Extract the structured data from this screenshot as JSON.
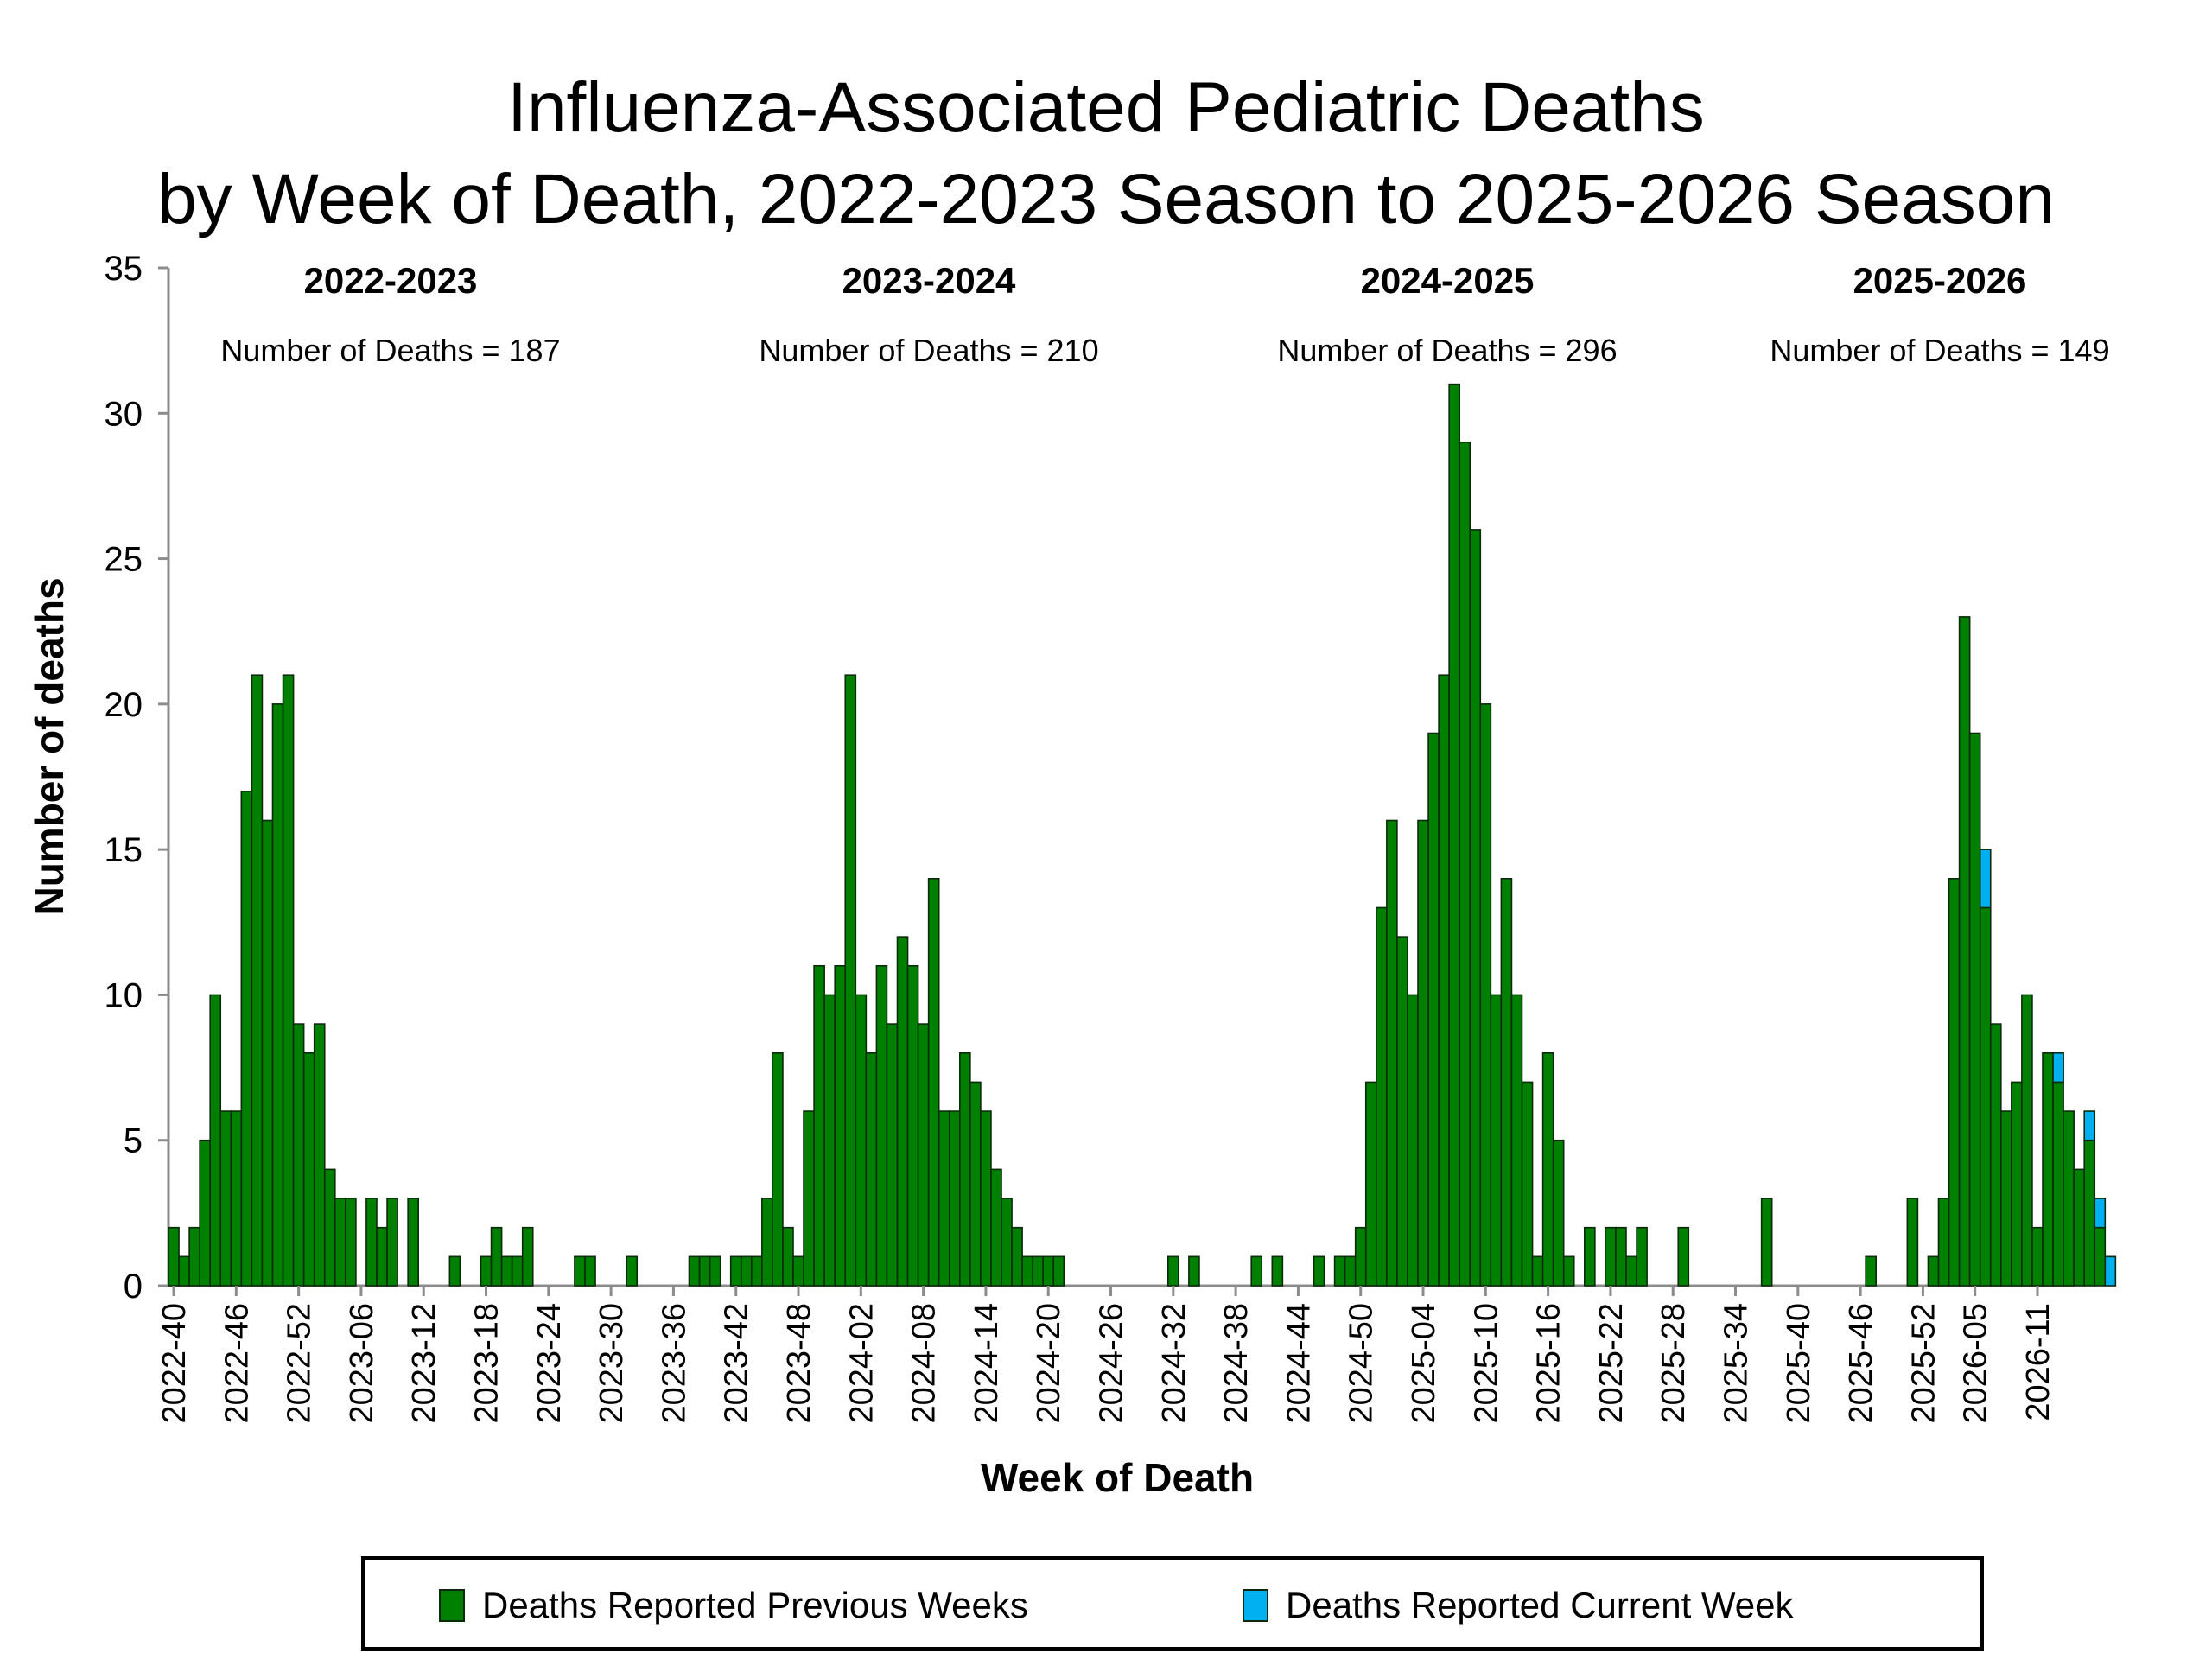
{
  "chart_data": {
    "type": "bar",
    "title": [
      "Influenza-Associated Pediatric Deaths",
      "by Week of Death, 2022-2023 Season to 2025-2026 Season"
    ],
    "xlabel": "Week of Death",
    "ylabel": "Number of deaths",
    "ylim": [
      0,
      35
    ],
    "yticks": [
      0,
      5,
      10,
      15,
      20,
      25,
      30,
      35
    ],
    "x_tick_labels": [
      "2022-40",
      "2022-46",
      "2022-52",
      "2023-06",
      "2023-12",
      "2023-18",
      "2023-24",
      "2023-30",
      "2023-36",
      "2023-42",
      "2023-48",
      "2024-02",
      "2024-08",
      "2024-14",
      "2024-20",
      "2024-26",
      "2024-32",
      "2024-38",
      "2024-44",
      "2024-50",
      "2025-04",
      "2025-10",
      "2025-16",
      "2025-22",
      "2025-28",
      "2025-34",
      "2025-40",
      "2025-46",
      "2025-52",
      "2026-05",
      "2026-11"
    ],
    "x_start_week": "2022-40",
    "series": [
      {
        "name": "Deaths Reported Previous Weeks",
        "color": "#008000",
        "values": [
          2,
          1,
          2,
          5,
          10,
          6,
          6,
          17,
          21,
          16,
          20,
          21,
          9,
          8,
          9,
          4,
          3,
          3,
          0,
          3,
          2,
          3,
          0,
          3,
          0,
          0,
          0,
          1,
          0,
          0,
          1,
          2,
          1,
          1,
          2,
          0,
          0,
          0,
          0,
          1,
          1,
          0,
          0,
          0,
          1,
          0,
          0,
          0,
          0,
          0,
          1,
          1,
          1,
          0,
          1,
          1,
          1,
          3,
          8,
          2,
          1,
          6,
          11,
          10,
          11,
          21,
          10,
          8,
          11,
          9,
          12,
          11,
          9,
          14,
          6,
          6,
          8,
          7,
          6,
          4,
          3,
          2,
          1,
          1,
          1,
          1,
          0,
          0,
          0,
          0,
          0,
          0,
          0,
          0,
          0,
          0,
          1,
          0,
          1,
          0,
          0,
          0,
          0,
          0,
          1,
          0,
          1,
          0,
          0,
          0,
          1,
          0,
          1,
          1,
          2,
          7,
          13,
          16,
          12,
          10,
          16,
          19,
          21,
          31,
          29,
          26,
          20,
          10,
          14,
          10,
          7,
          1,
          8,
          5,
          1,
          0,
          2,
          0,
          2,
          2,
          1,
          2,
          0,
          0,
          0,
          2,
          0,
          0,
          0,
          0,
          0,
          0,
          0,
          3,
          0,
          0,
          0,
          0,
          0,
          0,
          0,
          0,
          0,
          1,
          0,
          0,
          0,
          3,
          0,
          1,
          3,
          14,
          23,
          19,
          13,
          9,
          6,
          7,
          10,
          2,
          8,
          7,
          6,
          4,
          5,
          2,
          0,
          0
        ]
      },
      {
        "name": "Deaths Reported Current Week",
        "color": "#00b0f0",
        "values": [
          0,
          0,
          0,
          0,
          0,
          0,
          0,
          0,
          0,
          0,
          0,
          0,
          0,
          0,
          0,
          0,
          0,
          0,
          0,
          0,
          0,
          0,
          0,
          0,
          0,
          0,
          0,
          0,
          0,
          0,
          0,
          0,
          0,
          0,
          0,
          0,
          0,
          0,
          0,
          0,
          0,
          0,
          0,
          0,
          0,
          0,
          0,
          0,
          0,
          0,
          0,
          0,
          0,
          0,
          0,
          0,
          0,
          0,
          0,
          0,
          0,
          0,
          0,
          0,
          0,
          0,
          0,
          0,
          0,
          0,
          0,
          0,
          0,
          0,
          0,
          0,
          0,
          0,
          0,
          0,
          0,
          0,
          0,
          0,
          0,
          0,
          0,
          0,
          0,
          0,
          0,
          0,
          0,
          0,
          0,
          0,
          0,
          0,
          0,
          0,
          0,
          0,
          0,
          0,
          0,
          0,
          0,
          0,
          0,
          0,
          0,
          0,
          0,
          0,
          0,
          0,
          0,
          0,
          0,
          0,
          0,
          0,
          0,
          0,
          0,
          0,
          0,
          0,
          0,
          0,
          0,
          0,
          0,
          0,
          0,
          0,
          0,
          0,
          0,
          0,
          0,
          0,
          0,
          0,
          0,
          0,
          0,
          0,
          0,
          0,
          0,
          0,
          0,
          0,
          0,
          0,
          0,
          0,
          0,
          0,
          0,
          0,
          0,
          0,
          0,
          0,
          0,
          0,
          0,
          0,
          0,
          0,
          0,
          0,
          2,
          0,
          0,
          0,
          0,
          0,
          0,
          1,
          0,
          0,
          1,
          1,
          1
        ]
      }
    ],
    "seasons": [
      {
        "label": "2022-2023",
        "deaths_text": "Number of Deaths = 187"
      },
      {
        "label": "2023-2024",
        "deaths_text": "Number of Deaths = 210"
      },
      {
        "label": "2024-2025",
        "deaths_text": "Number of Deaths = 296"
      },
      {
        "label": "2025-2026",
        "deaths_text": "Number of Deaths = 149"
      }
    ],
    "legend_position": "bottom",
    "grid": false
  }
}
